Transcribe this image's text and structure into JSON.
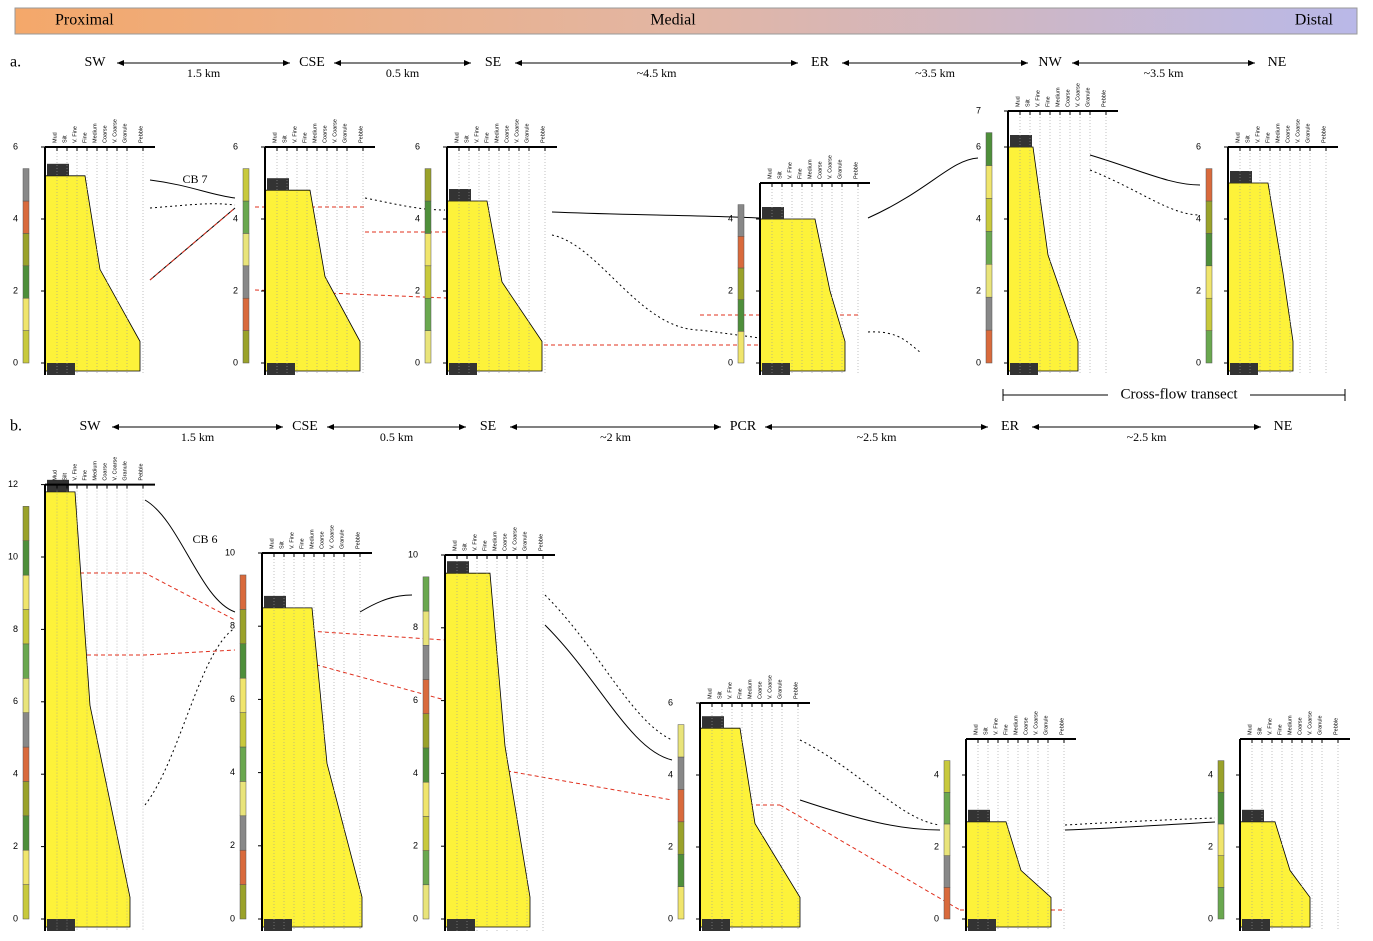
{
  "header": {
    "proximal": "Proximal",
    "medial": "Medial",
    "distal": "Distal"
  },
  "grain_sizes": [
    "Mud",
    "Silt",
    "V. Fine",
    "Fine",
    "Medium",
    "Coarse",
    "V. Coarse",
    "Granule",
    "Pebble"
  ],
  "panels": [
    {
      "label": "a.",
      "stations": [
        "SW",
        "CSE",
        "SE",
        "ER",
        "NW",
        "NE"
      ],
      "distances": [
        "1.5 km",
        "0.5 km",
        "~4.5 km",
        "~3.5 km",
        "~3.5 km"
      ],
      "logs": [
        {
          "ticks": [
            0,
            2,
            4,
            6
          ]
        },
        {
          "ticks": [
            0,
            2,
            4,
            6
          ]
        },
        {
          "ticks": [
            0,
            2,
            4,
            6
          ]
        },
        {
          "ticks": [
            0,
            2,
            4
          ]
        },
        {
          "ticks": [
            0,
            2,
            4,
            6,
            7
          ]
        },
        {
          "ticks": [
            0,
            2,
            4,
            6
          ]
        }
      ],
      "annotations": {
        "bed": "CB 7",
        "transect": "Cross-flow transect"
      }
    },
    {
      "label": "b.",
      "stations": [
        "SW",
        "CSE",
        "SE",
        "PCR",
        "ER",
        "NE"
      ],
      "distances": [
        "1.5 km",
        "0.5 km",
        "~2 km",
        "~2.5 km",
        "~2.5 km"
      ],
      "logs": [
        {
          "ticks": [
            0,
            2,
            4,
            6,
            8,
            10,
            12
          ]
        },
        {
          "ticks": [
            0,
            2,
            4,
            6,
            8,
            10
          ]
        },
        {
          "ticks": [
            0,
            2,
            4,
            6,
            8,
            10
          ]
        },
        {
          "ticks": [
            0,
            2,
            4,
            6
          ]
        },
        {
          "ticks": [
            0,
            2,
            4
          ]
        },
        {
          "ticks": [
            0,
            2,
            4
          ]
        }
      ],
      "annotations": {
        "bed": "CB 6"
      }
    }
  ]
}
